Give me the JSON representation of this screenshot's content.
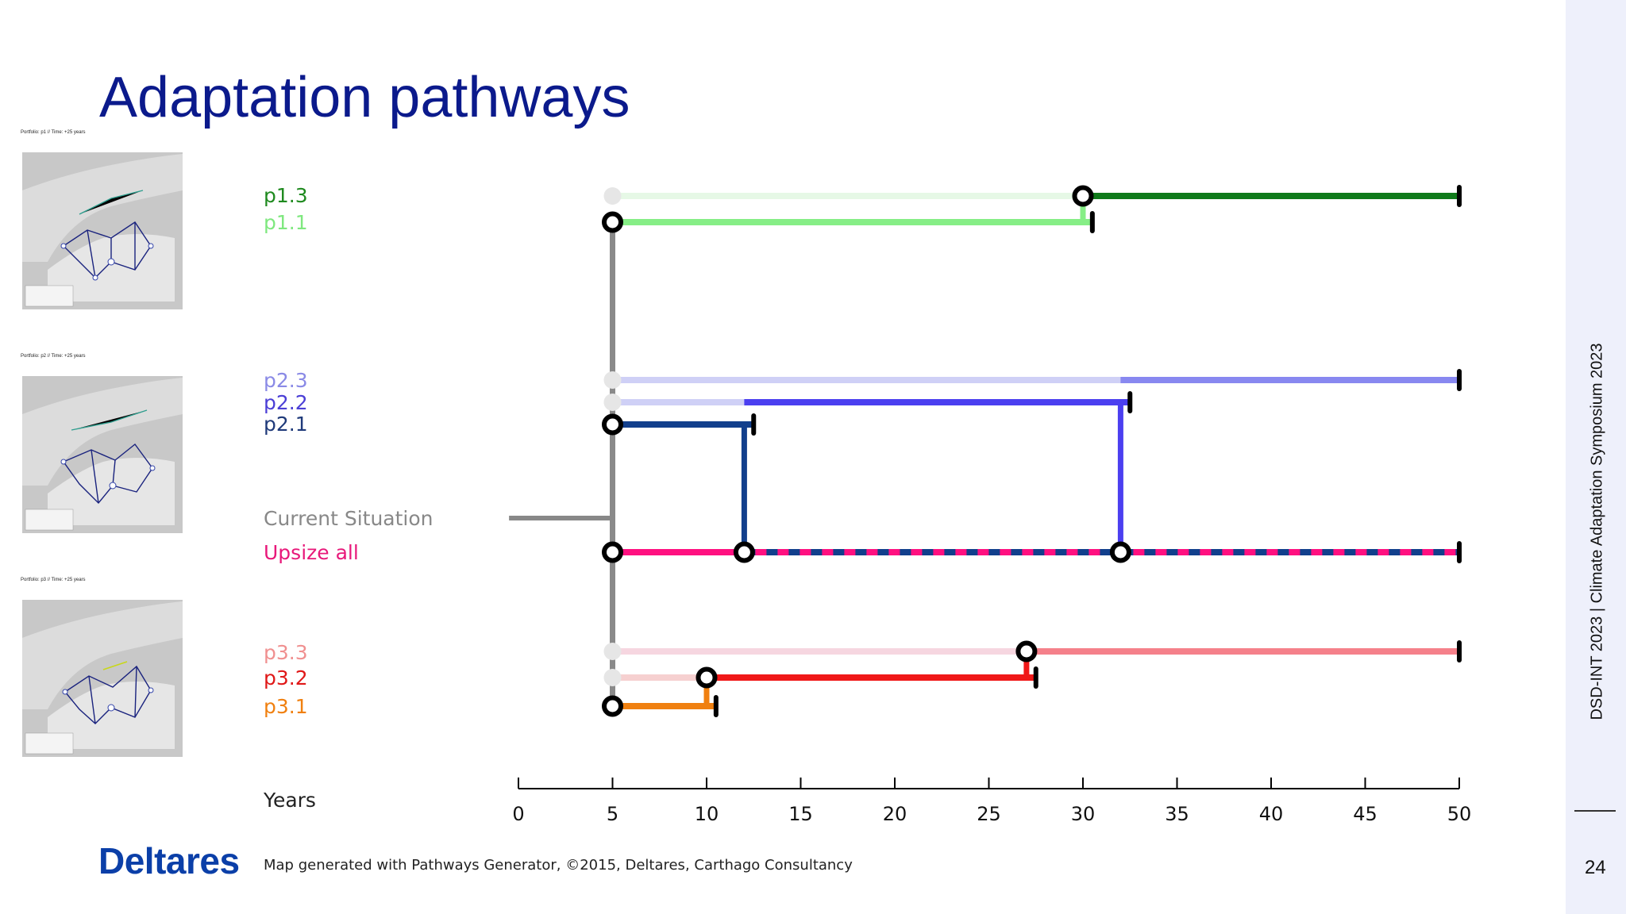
{
  "slide": {
    "title": "Adaptation pathways",
    "side_text": "DSD-INT 2023 | Climate Adaptation Symposium 2023",
    "page_number": "24",
    "logo_text": "Deltares",
    "credit": "Map generated with Pathways Generator, ©2015, Deltares, Carthago Consultancy"
  },
  "thumbnails": [
    {
      "caption": "Portfolio: p1  //  Time: +25 years"
    },
    {
      "caption": "Portfolio: p2  //  Time: +25 years"
    },
    {
      "caption": "Portfolio: p3  //  Time: +25 years"
    }
  ],
  "pathways": {
    "labels": [
      {
        "id": "p1.3",
        "text": "p1.3",
        "color": "#1f8a1f"
      },
      {
        "id": "p1.1",
        "text": "p1.1",
        "color": "#7fe87f"
      },
      {
        "id": "p2.3",
        "text": "p2.3",
        "color": "#8a8ae6"
      },
      {
        "id": "p2.2",
        "text": "p2.2",
        "color": "#4b3fd6"
      },
      {
        "id": "p2.1",
        "text": "p2.1",
        "color": "#1f3a7a"
      },
      {
        "id": "current",
        "text": "Current Situation",
        "color": "#888888"
      },
      {
        "id": "upsize",
        "text": "Upsize all",
        "color": "#e8187a"
      },
      {
        "id": "p3.3",
        "text": "p3.3",
        "color": "#f09090"
      },
      {
        "id": "p3.2",
        "text": "p3.2",
        "color": "#e01818"
      },
      {
        "id": "p3.1",
        "text": "p3.1",
        "color": "#f08010"
      }
    ],
    "axis_label": "Years",
    "ticks": [
      0,
      5,
      10,
      15,
      20,
      25,
      30,
      35,
      40,
      45,
      50
    ],
    "start_year": 5,
    "lines": [
      {
        "id": "p1.3",
        "start": 30,
        "end": 50,
        "color": "#0f7a1a",
        "faint_color": "#e6f8e6"
      },
      {
        "id": "p1.1",
        "start": 5,
        "end": 30.5,
        "color": "#86ee86"
      },
      {
        "id": "p2.3",
        "start": 32,
        "end": 50,
        "color": "#8888f0",
        "faint_color": "#cfd0f6"
      },
      {
        "id": "p2.2",
        "start": 12,
        "end": 32.5,
        "color": "#4b3ff0",
        "faint_color": "#cfd0f6"
      },
      {
        "id": "p2.1",
        "start": 5,
        "end": 12.5,
        "color": "#123f8c"
      },
      {
        "id": "upsize",
        "start": 5,
        "end": 50,
        "color": "#ff1080",
        "dash_color": "#123f8c",
        "dash_from": 12
      },
      {
        "id": "p3.3",
        "start": 27,
        "end": 50,
        "color": "#f5808a",
        "faint_color": "#f6d6e0"
      },
      {
        "id": "p3.2",
        "start": 10,
        "end": 27.5,
        "color": "#f01818",
        "faint_color": "#f6d0d0"
      },
      {
        "id": "p3.1",
        "start": 5,
        "end": 10.5,
        "color": "#f08010"
      }
    ],
    "transitions": [
      {
        "from": "p1.1",
        "to": "p1.3",
        "year": 30
      },
      {
        "from": "p2.1",
        "to": "upsize",
        "year": 12
      },
      {
        "from": "p2.2",
        "to": "upsize",
        "year": 32
      },
      {
        "from": "p3.2",
        "to": "p3.3",
        "year": 27
      },
      {
        "from": "p3.1",
        "to": "p3.2",
        "year": 10
      }
    ]
  }
}
